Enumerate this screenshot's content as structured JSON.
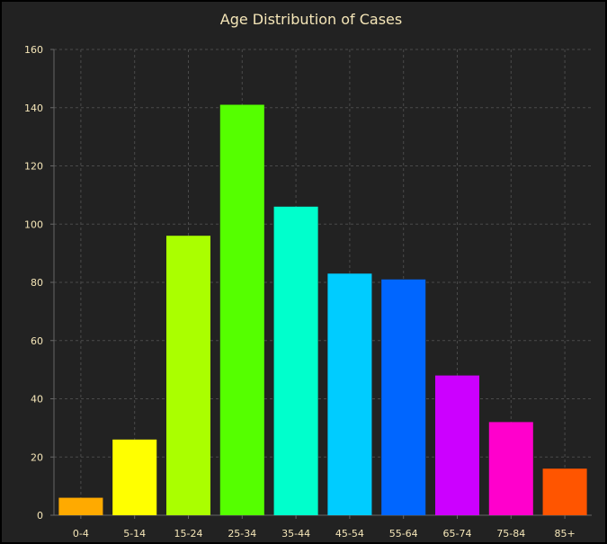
{
  "chart_data": {
    "type": "bar",
    "title": "Age Distribution of Cases",
    "xlabel": "",
    "ylabel": "",
    "categories": [
      "0-4",
      "5-14",
      "15-24",
      "25-34",
      "35-44",
      "45-54",
      "55-64",
      "65-74",
      "75-84",
      "85+"
    ],
    "values": [
      6,
      26,
      96,
      141,
      106,
      83,
      81,
      48,
      32,
      16
    ],
    "colors": [
      "#ffaa00",
      "#ffff00",
      "#aaff00",
      "#55ff00",
      "#00ffcc",
      "#00ccff",
      "#0066ff",
      "#cc00ff",
      "#ff00cc",
      "#ff5500"
    ],
    "ylim": [
      0,
      160
    ],
    "yticks": [
      0,
      20,
      40,
      60,
      80,
      100,
      120,
      140,
      160
    ],
    "grid": true,
    "colors_theme": {
      "background": "#222222",
      "text": "#f5e6b8",
      "grid": "#4a4a4a",
      "axis": "#666666"
    }
  }
}
